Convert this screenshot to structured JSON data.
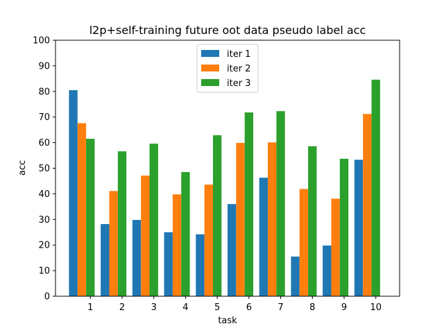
{
  "chart_data": {
    "type": "bar",
    "title": "l2p+self-training future oot data pseudo label acc",
    "xlabel": "task",
    "ylabel": "acc",
    "categories": [
      "1",
      "2",
      "3",
      "4",
      "5",
      "6",
      "7",
      "8",
      "9",
      "10"
    ],
    "ylim": [
      0,
      100
    ],
    "yticks": [
      0,
      10,
      20,
      30,
      40,
      50,
      60,
      70,
      80,
      90,
      100
    ],
    "grid": false,
    "legend_position": "upper-center",
    "series": [
      {
        "name": "iter 1",
        "color": "#1f77b4",
        "values": [
          80.5,
          28.2,
          29.8,
          25.0,
          24.2,
          36.0,
          46.3,
          15.5,
          19.8,
          53.3
        ]
      },
      {
        "name": "iter 2",
        "color": "#ff7f0e",
        "values": [
          67.6,
          41.1,
          47.1,
          39.8,
          43.6,
          59.9,
          60.1,
          41.9,
          38.1,
          71.2
        ]
      },
      {
        "name": "iter 3",
        "color": "#2ca02c",
        "values": [
          61.5,
          56.6,
          59.6,
          48.5,
          62.9,
          71.8,
          72.3,
          58.6,
          53.7,
          84.6
        ]
      }
    ]
  }
}
